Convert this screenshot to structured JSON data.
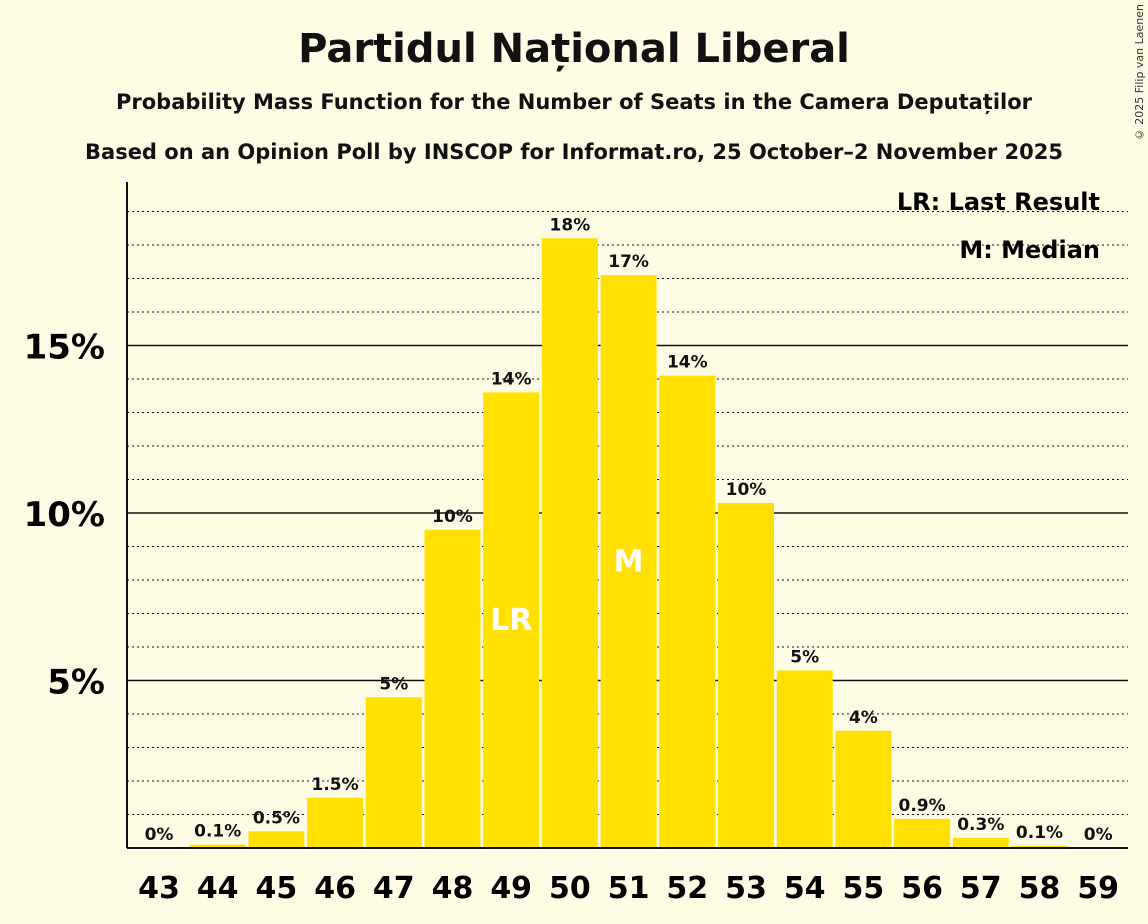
{
  "chart_data": {
    "type": "bar",
    "title": "Partidul Național Liberal",
    "subtitle": "Probability Mass Function for the Number of Seats in the Camera Deputaților",
    "subtitle2": "Based on an Opinion Poll by INSCOP for Informat.ro, 25 October–2 November 2025",
    "copyright": "© 2025 Filip van Laenen",
    "categories": [
      "43",
      "44",
      "45",
      "46",
      "47",
      "48",
      "49",
      "50",
      "51",
      "52",
      "53",
      "54",
      "55",
      "56",
      "57",
      "58",
      "59"
    ],
    "values": [
      0,
      0.1,
      0.5,
      1.5,
      4.5,
      9.5,
      13.6,
      18.2,
      17.1,
      14.1,
      10.3,
      5.3,
      3.5,
      0.87,
      0.3,
      0.06,
      0
    ],
    "labels": [
      "0%",
      "0.1%",
      "0.5%",
      "1.5%",
      "5%",
      "10%",
      "14%",
      "18%",
      "17%",
      "14%",
      "10%",
      "5%",
      "4%",
      "0.9%",
      "0.3%",
      "0.1%",
      "0%"
    ],
    "markers": {
      "49": "LR",
      "51": "M"
    },
    "legend": [
      "LR: Last Result",
      "M: Median"
    ],
    "yticks": [
      5,
      10,
      15
    ],
    "ytick_labels": [
      "5%",
      "10%",
      "15%"
    ],
    "ylim": [
      0,
      19.8
    ],
    "bar_color": "#FFE000",
    "grid": "dotted every 1%, solid at 5% steps"
  }
}
